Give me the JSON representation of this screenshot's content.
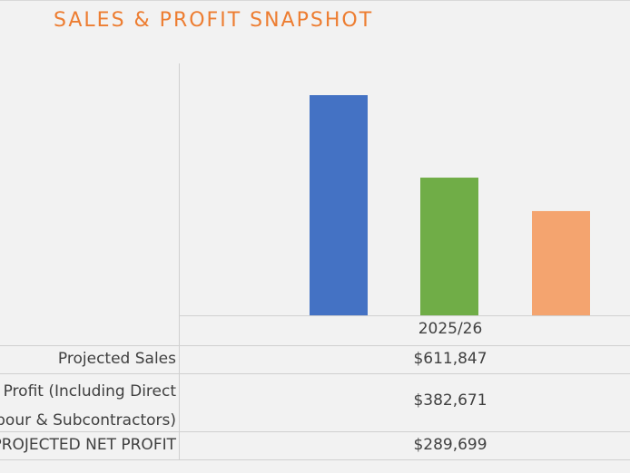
{
  "chart_data": {
    "type": "bar",
    "title": "SALES & PROFIT SNAPSHOT",
    "categories": [
      "2025/26"
    ],
    "series": [
      {
        "name": "Projected Sales",
        "values": [
          611847
        ],
        "display": "$611,847",
        "color": "#4472c4",
        "label_lines": [
          "Projected Sales"
        ]
      },
      {
        "name": "Gross Profit (Including Direct Labour & Subcontractors)",
        "values": [
          382671
        ],
        "display": "$382,671",
        "color": "#70ad47",
        "label_lines": [
          "Gross Profit (Including Direct",
          "Labour & Subcontractors)"
        ]
      },
      {
        "name": "PROJECTED NET PROFIT",
        "values": [
          289699
        ],
        "display": "$289,699",
        "color": "#f4a46f",
        "label_lines": [
          "PROJECTED NET PROFIT"
        ]
      }
    ],
    "ylim": [
      0,
      700000
    ],
    "grid": false,
    "legend": "data table below chart"
  },
  "colors": {
    "title": "#ed7d31",
    "text": "#404040",
    "gridline": "#d0d0d0",
    "background": "#f2f2f2"
  }
}
